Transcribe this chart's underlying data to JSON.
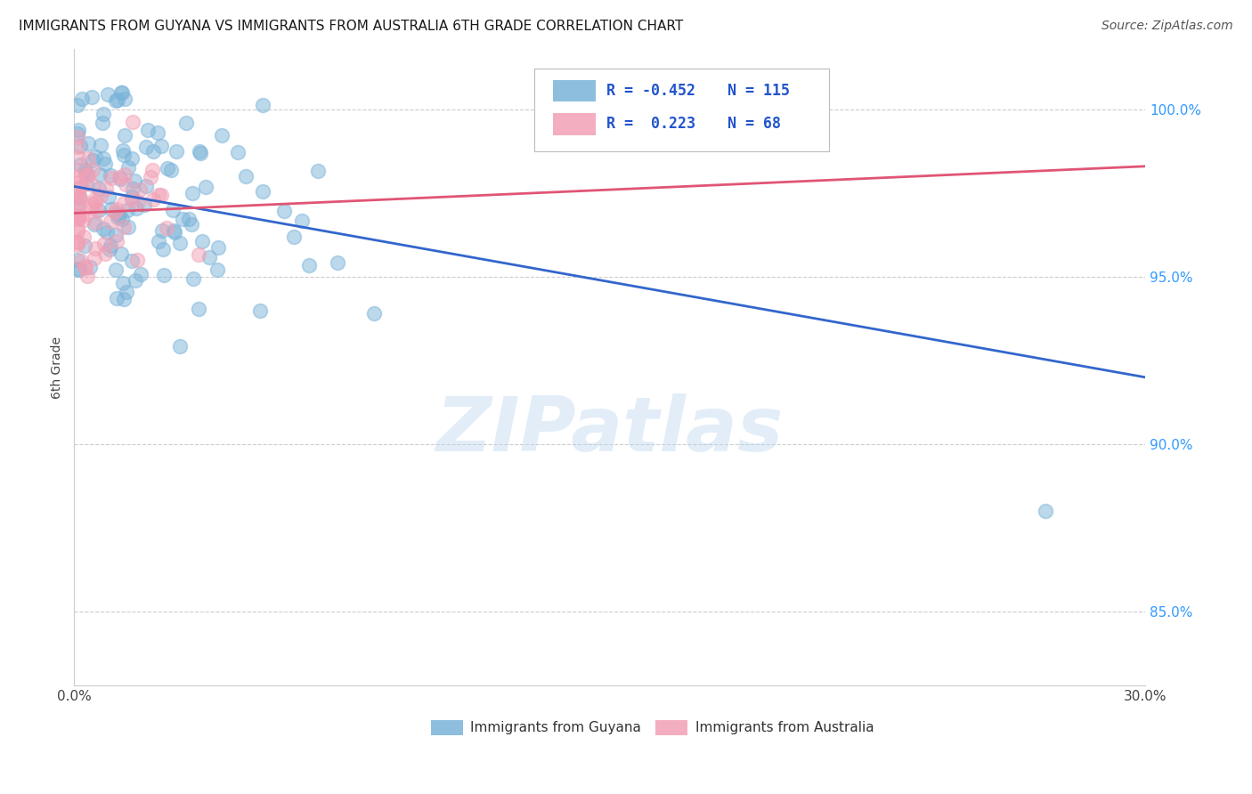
{
  "title": "IMMIGRANTS FROM GUYANA VS IMMIGRANTS FROM AUSTRALIA 6TH GRADE CORRELATION CHART",
  "source": "Source: ZipAtlas.com",
  "ylabel": "6th Grade",
  "xlim": [
    0.0,
    0.3
  ],
  "ylim": [
    0.828,
    1.018
  ],
  "xtick_vals": [
    0.0,
    0.05,
    0.1,
    0.15,
    0.2,
    0.25,
    0.3
  ],
  "xtick_labels": [
    "0.0%",
    "",
    "",
    "",
    "",
    "",
    "30.0%"
  ],
  "ytick_vals": [
    0.85,
    0.9,
    0.95,
    1.0
  ],
  "ytick_labels": [
    "85.0%",
    "90.0%",
    "95.0%",
    "100.0%"
  ],
  "guyana_color": "#7ab3d9",
  "australia_color": "#f2a0b5",
  "guyana_line_color": "#3366cc",
  "australia_line_color": "#e05575",
  "guyana_line_x": [
    0.0,
    0.3
  ],
  "guyana_line_y": [
    0.977,
    0.92
  ],
  "australia_line_x": [
    0.0,
    0.3
  ],
  "australia_line_y": [
    0.969,
    0.983
  ],
  "watermark": "ZIPatlas",
  "background_color": "#ffffff",
  "grid_color": "#c8c8c8",
  "right_tick_color": "#3399ff",
  "title_color": "#1a1a1a",
  "source_color": "#555555"
}
